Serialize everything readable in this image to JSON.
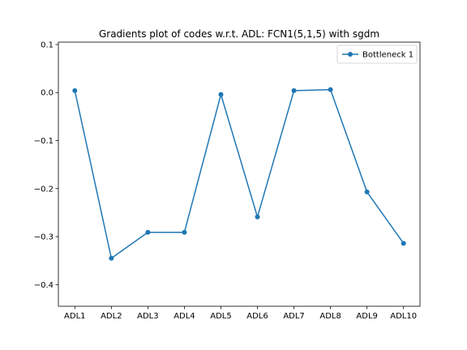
{
  "chart_data": {
    "type": "line",
    "title": "Gradients plot of codes w.r.t. ADL: FCN1(5,1,5) with sgdm",
    "xlabel": "",
    "ylabel": "",
    "categories": [
      "ADL1",
      "ADL2",
      "ADL3",
      "ADL4",
      "ADL5",
      "ADL6",
      "ADL7",
      "ADL8",
      "ADL9",
      "ADL10"
    ],
    "series": [
      {
        "name": "Bottleneck 1",
        "values": [
          0.004,
          -0.345,
          -0.291,
          -0.291,
          -0.004,
          -0.259,
          0.004,
          0.006,
          -0.207,
          -0.314
        ],
        "color": "#1f77b4",
        "marker": "circle"
      }
    ],
    "ylim": [
      -0.445,
      0.105
    ],
    "yticks": [
      0.1,
      0.0,
      -0.1,
      -0.2,
      -0.3,
      -0.4
    ],
    "ytick_labels": [
      "0.1",
      "0.0",
      "−0.1",
      "−0.2",
      "−0.3",
      "−0.4"
    ],
    "grid": false,
    "legend_position": "upper right"
  }
}
